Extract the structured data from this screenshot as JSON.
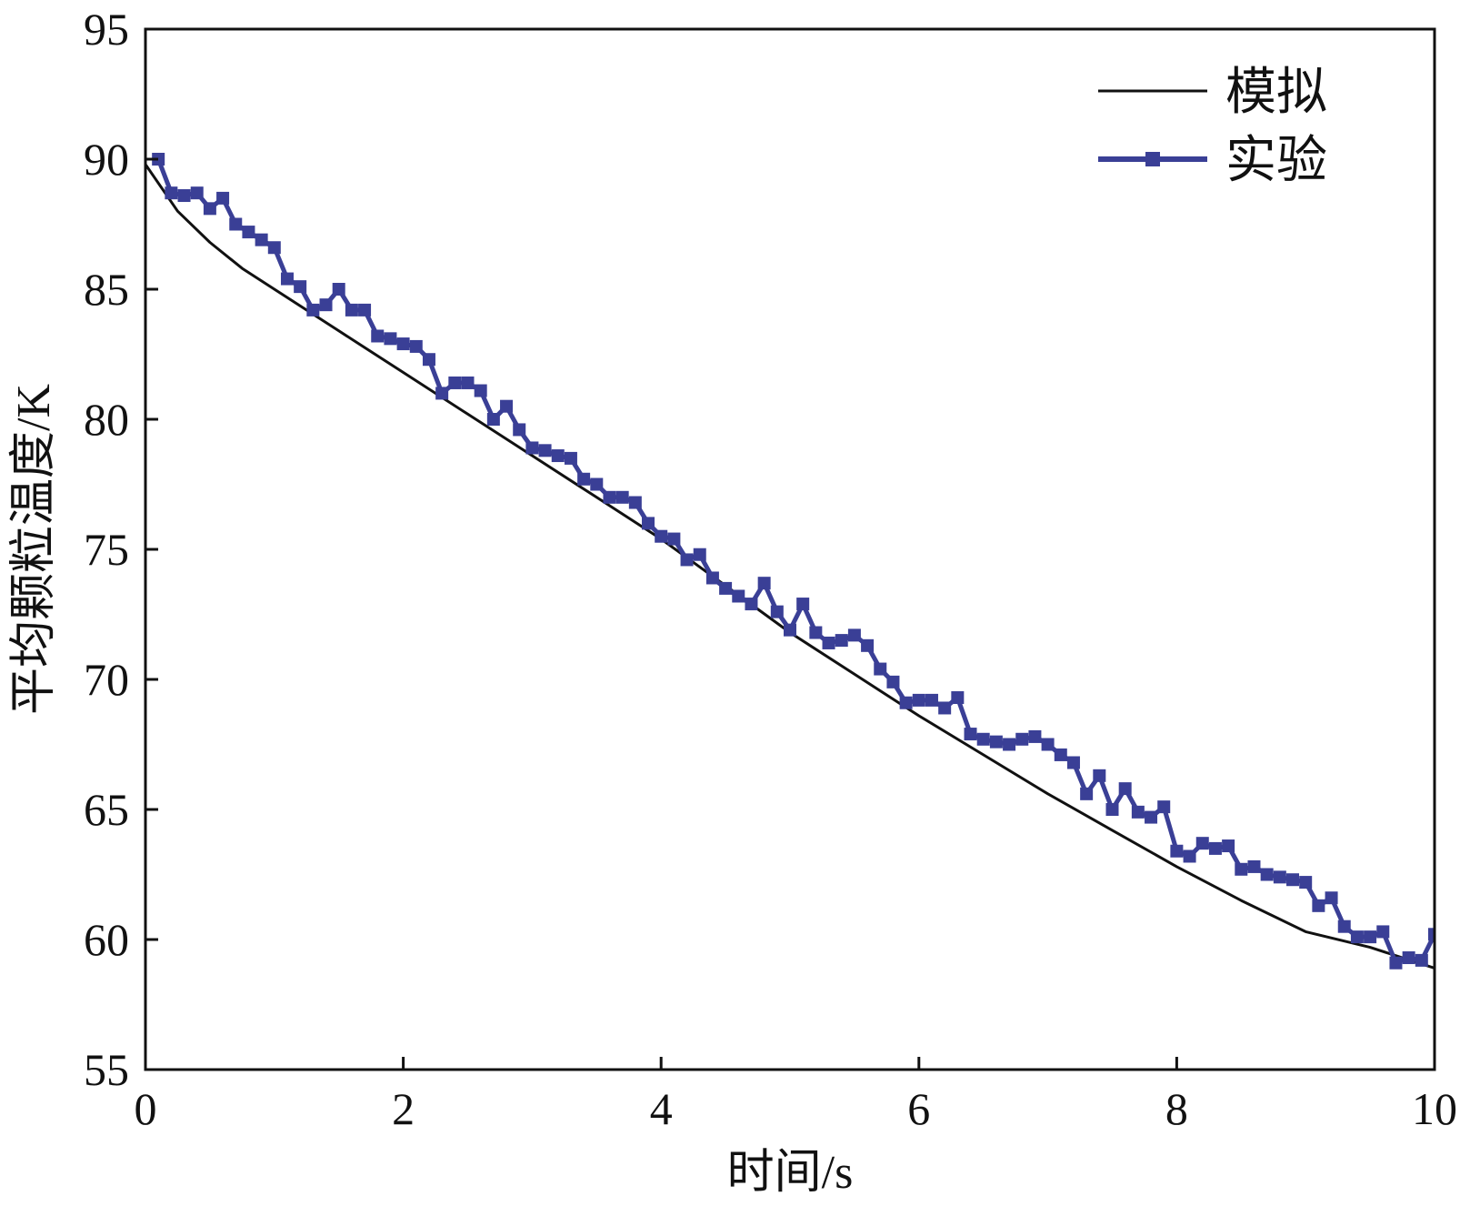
{
  "chart_data": {
    "type": "line",
    "title": "",
    "xlabel": "时间/s",
    "ylabel": "平均颗粒温度/K",
    "xlim": [
      0,
      10
    ],
    "ylim": [
      55,
      95
    ],
    "xticks": [
      0,
      2,
      4,
      6,
      8,
      10
    ],
    "yticks": [
      55,
      60,
      65,
      70,
      75,
      80,
      85,
      90,
      95
    ],
    "grid": false,
    "legend_position": "top-right",
    "series": [
      {
        "name": "模拟",
        "color": "#111111",
        "marker": "none",
        "x": [
          0,
          0.25,
          0.5,
          0.75,
          1,
          1.5,
          2,
          2.5,
          3,
          3.5,
          4,
          4.5,
          5,
          5.5,
          6,
          6.5,
          7,
          7.5,
          8,
          8.5,
          9,
          9.5,
          10
        ],
        "y": [
          89.8,
          88.0,
          86.8,
          85.8,
          85.0,
          83.4,
          81.8,
          80.2,
          78.6,
          77.0,
          75.4,
          73.6,
          71.8,
          70.2,
          68.6,
          67.1,
          65.6,
          64.2,
          62.8,
          61.5,
          60.3,
          59.7,
          58.9
        ]
      },
      {
        "name": "实验",
        "color": "#3a3f96",
        "marker": "square",
        "x": [
          0.1,
          0.2,
          0.3,
          0.4,
          0.5,
          0.6,
          0.7,
          0.8,
          0.9,
          1.0,
          1.1,
          1.2,
          1.3,
          1.4,
          1.5,
          1.6,
          1.7,
          1.8,
          1.9,
          2.0,
          2.1,
          2.2,
          2.3,
          2.4,
          2.5,
          2.6,
          2.7,
          2.8,
          2.9,
          3.0,
          3.1,
          3.2,
          3.3,
          3.4,
          3.5,
          3.6,
          3.7,
          3.8,
          3.9,
          4.0,
          4.1,
          4.2,
          4.3,
          4.4,
          4.5,
          4.6,
          4.7,
          4.8,
          4.9,
          5.0,
          5.1,
          5.2,
          5.3,
          5.4,
          5.5,
          5.6,
          5.7,
          5.8,
          5.9,
          6.0,
          6.1,
          6.2,
          6.3,
          6.4,
          6.5,
          6.6,
          6.7,
          6.8,
          6.9,
          7.0,
          7.1,
          7.2,
          7.3,
          7.4,
          7.5,
          7.6,
          7.7,
          7.8,
          7.9,
          8.0,
          8.1,
          8.2,
          8.3,
          8.4,
          8.5,
          8.6,
          8.7,
          8.8,
          8.9,
          9.0,
          9.1,
          9.2,
          9.3,
          9.4,
          9.5,
          9.6,
          9.7,
          9.8,
          9.9,
          10.0
        ],
        "y": [
          90.0,
          88.7,
          88.6,
          88.7,
          88.1,
          88.5,
          87.5,
          87.2,
          86.9,
          86.6,
          85.4,
          85.1,
          84.2,
          84.4,
          85.0,
          84.2,
          84.2,
          83.2,
          83.1,
          82.9,
          82.8,
          82.3,
          81.0,
          81.4,
          81.4,
          81.1,
          80.0,
          80.5,
          79.6,
          78.9,
          78.8,
          78.6,
          78.5,
          77.7,
          77.5,
          77.0,
          77.0,
          76.8,
          76.0,
          75.5,
          75.4,
          74.6,
          74.8,
          73.9,
          73.5,
          73.2,
          72.9,
          73.7,
          72.6,
          71.9,
          72.9,
          71.8,
          71.4,
          71.5,
          71.7,
          71.3,
          70.4,
          69.9,
          69.1,
          69.2,
          69.2,
          68.9,
          69.3,
          67.9,
          67.7,
          67.6,
          67.5,
          67.7,
          67.8,
          67.5,
          67.1,
          66.8,
          65.6,
          66.3,
          65.0,
          65.8,
          64.9,
          64.7,
          65.1,
          63.4,
          63.2,
          63.7,
          63.5,
          63.6,
          62.7,
          62.8,
          62.5,
          62.4,
          62.3,
          62.2,
          61.3,
          61.6,
          60.5,
          60.1,
          60.1,
          60.3,
          59.1,
          59.3,
          59.2,
          60.2
        ]
      }
    ]
  }
}
